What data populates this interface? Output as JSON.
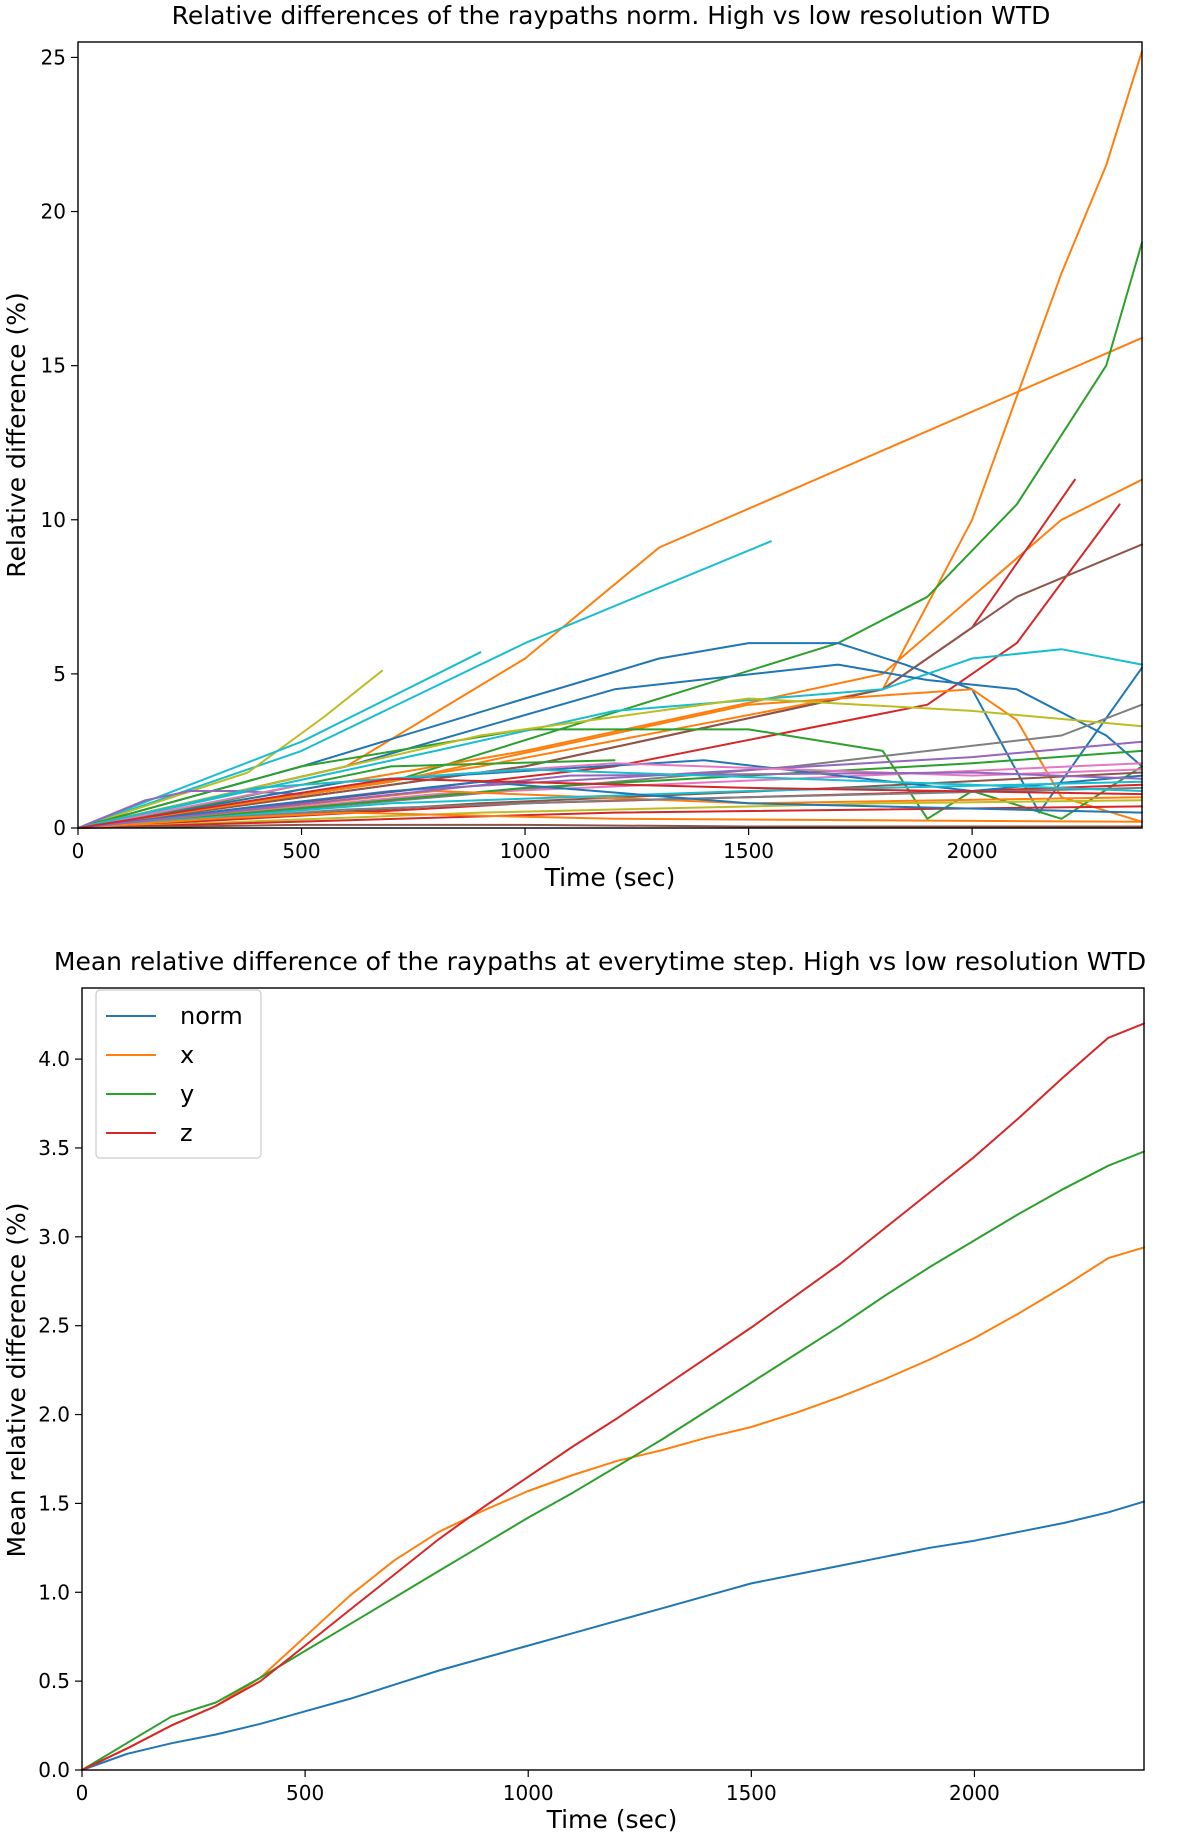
{
  "chart_data": [
    {
      "type": "line",
      "title": "Relative differences of the raypaths norm. High vs low resolution WTD",
      "xlabel": "Time (sec)",
      "ylabel": "Relative difference (%)",
      "xlim": [
        0,
        2380
      ],
      "ylim": [
        0,
        25.5
      ],
      "xticks": [
        0,
        500,
        1000,
        1500,
        2000
      ],
      "yticks": [
        0,
        5,
        10,
        15,
        20,
        25
      ],
      "xtick_labels": [
        "0",
        "500",
        "1000",
        "1500",
        "2000"
      ],
      "ytick_labels": [
        "0",
        "5",
        "10",
        "15",
        "20",
        "25"
      ],
      "series": [
        {
          "color": "#ff7f0e",
          "x": [
            0,
            600,
            1000,
            1300,
            2380
          ],
          "y": [
            0,
            2,
            5.5,
            9.1,
            15.9
          ]
        },
        {
          "color": "#17becf",
          "x": [
            0,
            500,
            1000,
            1550
          ],
          "y": [
            0,
            2.5,
            6,
            9.3
          ]
        },
        {
          "color": "#bcbd22",
          "x": [
            0,
            380,
            550,
            680
          ],
          "y": [
            0,
            1.8,
            3.6,
            5.1
          ]
        },
        {
          "color": "#17becf",
          "x": [
            0,
            500,
            900
          ],
          "y": [
            0,
            2.8,
            5.7
          ]
        },
        {
          "color": "#ff7f0e",
          "x": [
            0,
            900,
            1800,
            2000,
            2100,
            2200,
            2300,
            2380
          ],
          "y": [
            0,
            2,
            4.5,
            10,
            14,
            18,
            21.5,
            25.2
          ]
        },
        {
          "color": "#2ca02c",
          "x": [
            0,
            700,
            1700,
            1900,
            2100,
            2300,
            2380
          ],
          "y": [
            0,
            1.5,
            6,
            7.5,
            10.5,
            15,
            19
          ]
        },
        {
          "color": "#ff7f0e",
          "x": [
            0,
            1000,
            1800,
            2000,
            2200,
            2380
          ],
          "y": [
            0,
            2.5,
            5,
            7.5,
            10,
            11.3
          ]
        },
        {
          "color": "#d62728",
          "x": [
            0,
            1000,
            1800,
            2000,
            2230
          ],
          "y": [
            0,
            2,
            4.5,
            6.5,
            11.3
          ]
        },
        {
          "color": "#d62728",
          "x": [
            0,
            1200,
            1900,
            2100,
            2330
          ],
          "y": [
            0,
            2,
            4,
            6,
            10.5
          ]
        },
        {
          "color": "#8c564b",
          "x": [
            0,
            1000,
            1800,
            2100,
            2380
          ],
          "y": [
            0,
            2,
            4.5,
            7.5,
            9.2
          ]
        },
        {
          "color": "#1f77b4",
          "x": [
            0,
            500,
            1000,
            1300,
            1500,
            1700,
            1850,
            2000,
            2150,
            2380
          ],
          "y": [
            0,
            2,
            4.2,
            5.5,
            6,
            6,
            5.3,
            4.5,
            0.5,
            5.2
          ]
        },
        {
          "color": "#17becf",
          "x": [
            0,
            800,
            1200,
            1800,
            2000,
            2200,
            2380
          ],
          "y": [
            0,
            2.5,
            3.8,
            4.5,
            5.5,
            5.8,
            5.3
          ]
        },
        {
          "color": "#1f77b4",
          "x": [
            0,
            600,
            1200,
            1700,
            1900,
            2100,
            2300,
            2380
          ],
          "y": [
            0,
            2,
            4.5,
            5.3,
            4.8,
            4.5,
            3,
            2
          ]
        },
        {
          "color": "#ff7f0e",
          "x": [
            0,
            700,
            1500,
            2000,
            2100,
            2200,
            2380
          ],
          "y": [
            0,
            1.5,
            4,
            4.5,
            3.5,
            1,
            0.2
          ]
        },
        {
          "color": "#2ca02c",
          "x": [
            0,
            500,
            1000,
            1500,
            1800,
            1900,
            2000,
            2200,
            2380
          ],
          "y": [
            0,
            2,
            3.2,
            3.2,
            2.5,
            0.3,
            1.2,
            0.3,
            2
          ]
        },
        {
          "color": "#7f7f7f",
          "x": [
            0,
            800,
            1600,
            2200,
            2380
          ],
          "y": [
            0,
            1,
            2,
            3,
            4
          ]
        },
        {
          "color": "#bcbd22",
          "x": [
            0,
            900,
            1500,
            2000,
            2380
          ],
          "y": [
            0,
            3,
            4.2,
            3.8,
            3.3
          ]
        },
        {
          "color": "#9467bd",
          "x": [
            0,
            150,
            250,
            350,
            500
          ],
          "y": [
            0,
            0.9,
            1.2,
            1.2,
            1.1
          ]
        },
        {
          "color": "#9467bd",
          "x": [
            0,
            700,
            1400,
            2000,
            2380
          ],
          "y": [
            0,
            1.2,
            1.8,
            2.3,
            2.8
          ]
        },
        {
          "color": "#e377c2",
          "x": [
            0,
            800,
            1600,
            2380
          ],
          "y": [
            0,
            1.1,
            1.6,
            2.1
          ]
        },
        {
          "color": "#2ca02c",
          "x": [
            0,
            1000,
            2000,
            2380
          ],
          "y": [
            0,
            1.3,
            2.1,
            2.5
          ]
        },
        {
          "color": "#8c564b",
          "x": [
            0,
            900,
            1700,
            2380
          ],
          "y": [
            0,
            0.8,
            1.3,
            1.8
          ]
        },
        {
          "color": "#d62728",
          "x": [
            0,
            1000,
            2000,
            2380
          ],
          "y": [
            0,
            0.8,
            1.2,
            1.4
          ]
        },
        {
          "color": "#1f77b4",
          "x": [
            0,
            600,
            1400,
            2000,
            2380
          ],
          "y": [
            0,
            1.5,
            2.2,
            1.2,
            1.7
          ]
        },
        {
          "color": "#ff7f0e",
          "x": [
            0,
            800,
            1500,
            2380
          ],
          "y": [
            0,
            1.2,
            0.8,
            1
          ]
        },
        {
          "color": "#17becf",
          "x": [
            0,
            700,
            1500,
            2380
          ],
          "y": [
            0,
            0.8,
            1.2,
            1.5
          ]
        },
        {
          "color": "#7f7f7f",
          "x": [
            0,
            600,
            1200,
            1800,
            2380
          ],
          "y": [
            0,
            0.6,
            0.9,
            1.1,
            1.3
          ]
        },
        {
          "color": "#bcbd22",
          "x": [
            0,
            900,
            1800,
            2380
          ],
          "y": [
            0,
            0.5,
            0.8,
            0.9
          ]
        },
        {
          "color": "#d62728",
          "x": [
            0,
            1200,
            2380
          ],
          "y": [
            0,
            0.5,
            0.7
          ]
        },
        {
          "color": "#8c564b",
          "x": [
            0,
            500,
            1000,
            1500,
            2380
          ],
          "y": [
            0,
            0.1,
            0.1,
            0.05,
            0.05
          ]
        },
        {
          "color": "#2ca02c",
          "x": [
            0,
            300,
            700,
            1200
          ],
          "y": [
            0,
            0.8,
            2,
            2.2
          ]
        },
        {
          "color": "#1f77b4",
          "x": [
            0,
            400,
            900,
            1500,
            2380
          ],
          "y": [
            0,
            0.7,
            1.5,
            0.8,
            0.5
          ]
        },
        {
          "color": "#e377c2",
          "x": [
            0,
            500,
            1200,
            2000,
            2380
          ],
          "y": [
            0,
            1.4,
            2.1,
            1.7,
            1.9
          ]
        },
        {
          "color": "#ff7f0e",
          "x": [
            0,
            300,
            600,
            1200,
            2380
          ],
          "y": [
            0,
            0.3,
            0.5,
            0.3,
            0.2
          ]
        },
        {
          "color": "#9467bd",
          "x": [
            0,
            1100,
            2000,
            2380
          ],
          "y": [
            0,
            1.7,
            1.8,
            1.6
          ]
        },
        {
          "color": "#17becf",
          "x": [
            0,
            400,
            1000,
            2000,
            2380
          ],
          "y": [
            0,
            1.3,
            1.9,
            1.4,
            1.2
          ]
        },
        {
          "color": "#d62728",
          "x": [
            0,
            700,
            1500,
            2380
          ],
          "y": [
            0,
            1.6,
            1.3,
            1.1
          ]
        }
      ]
    },
    {
      "type": "line",
      "title": "Mean relative difference of the raypaths at everytime step. High vs low resolution WTD",
      "xlabel": "Time (sec)",
      "ylabel": "Mean relative difference (%)",
      "xlim": [
        0,
        2380
      ],
      "ylim": [
        0,
        4.4
      ],
      "xticks": [
        0,
        500,
        1000,
        1500,
        2000
      ],
      "yticks": [
        0.0,
        0.5,
        1.0,
        1.5,
        2.0,
        2.5,
        3.0,
        3.5,
        4.0
      ],
      "xtick_labels": [
        "0",
        "500",
        "1000",
        "1500",
        "2000"
      ],
      "ytick_labels": [
        "0.0",
        "0.5",
        "1.0",
        "1.5",
        "2.0",
        "2.5",
        "3.0",
        "3.5",
        "4.0"
      ],
      "legend_position": "upper-left",
      "series": [
        {
          "name": "norm",
          "color": "#1f77b4",
          "x": [
            0,
            100,
            200,
            300,
            400,
            500,
            600,
            700,
            800,
            900,
            1000,
            1100,
            1200,
            1300,
            1400,
            1500,
            1600,
            1700,
            1800,
            1900,
            2000,
            2100,
            2200,
            2300,
            2380
          ],
          "y": [
            0,
            0.09,
            0.15,
            0.2,
            0.26,
            0.33,
            0.4,
            0.48,
            0.56,
            0.63,
            0.7,
            0.77,
            0.84,
            0.91,
            0.98,
            1.05,
            1.1,
            1.15,
            1.2,
            1.25,
            1.29,
            1.34,
            1.39,
            1.45,
            1.51
          ]
        },
        {
          "name": "x",
          "color": "#ff7f0e",
          "x": [
            0,
            100,
            200,
            300,
            400,
            500,
            600,
            700,
            800,
            900,
            1000,
            1100,
            1200,
            1300,
            1400,
            1500,
            1600,
            1700,
            1800,
            1900,
            2000,
            2100,
            2200,
            2300,
            2380
          ],
          "y": [
            0,
            0.12,
            0.25,
            0.36,
            0.52,
            0.75,
            0.98,
            1.18,
            1.34,
            1.46,
            1.57,
            1.66,
            1.74,
            1.8,
            1.87,
            1.93,
            2.01,
            2.1,
            2.2,
            2.31,
            2.43,
            2.57,
            2.72,
            2.88,
            2.94
          ]
        },
        {
          "name": "y",
          "color": "#2ca02c",
          "x": [
            0,
            100,
            200,
            300,
            400,
            500,
            600,
            700,
            800,
            900,
            1000,
            1100,
            1200,
            1300,
            1400,
            1500,
            1600,
            1700,
            1800,
            1900,
            2000,
            2100,
            2200,
            2300,
            2380
          ],
          "y": [
            0,
            0.15,
            0.3,
            0.38,
            0.52,
            0.67,
            0.82,
            0.97,
            1.12,
            1.27,
            1.42,
            1.56,
            1.71,
            1.86,
            2.02,
            2.18,
            2.34,
            2.5,
            2.67,
            2.83,
            2.98,
            3.13,
            3.27,
            3.4,
            3.48
          ]
        },
        {
          "name": "z",
          "color": "#d62728",
          "x": [
            0,
            100,
            200,
            300,
            400,
            500,
            600,
            700,
            800,
            900,
            1000,
            1100,
            1200,
            1300,
            1400,
            1500,
            1600,
            1700,
            1800,
            1900,
            2000,
            2100,
            2200,
            2300,
            2380
          ],
          "y": [
            0,
            0.12,
            0.25,
            0.36,
            0.5,
            0.7,
            0.9,
            1.1,
            1.3,
            1.48,
            1.65,
            1.82,
            1.98,
            2.15,
            2.32,
            2.49,
            2.67,
            2.85,
            3.05,
            3.25,
            3.45,
            3.67,
            3.9,
            4.12,
            4.2
          ]
        }
      ]
    }
  ]
}
